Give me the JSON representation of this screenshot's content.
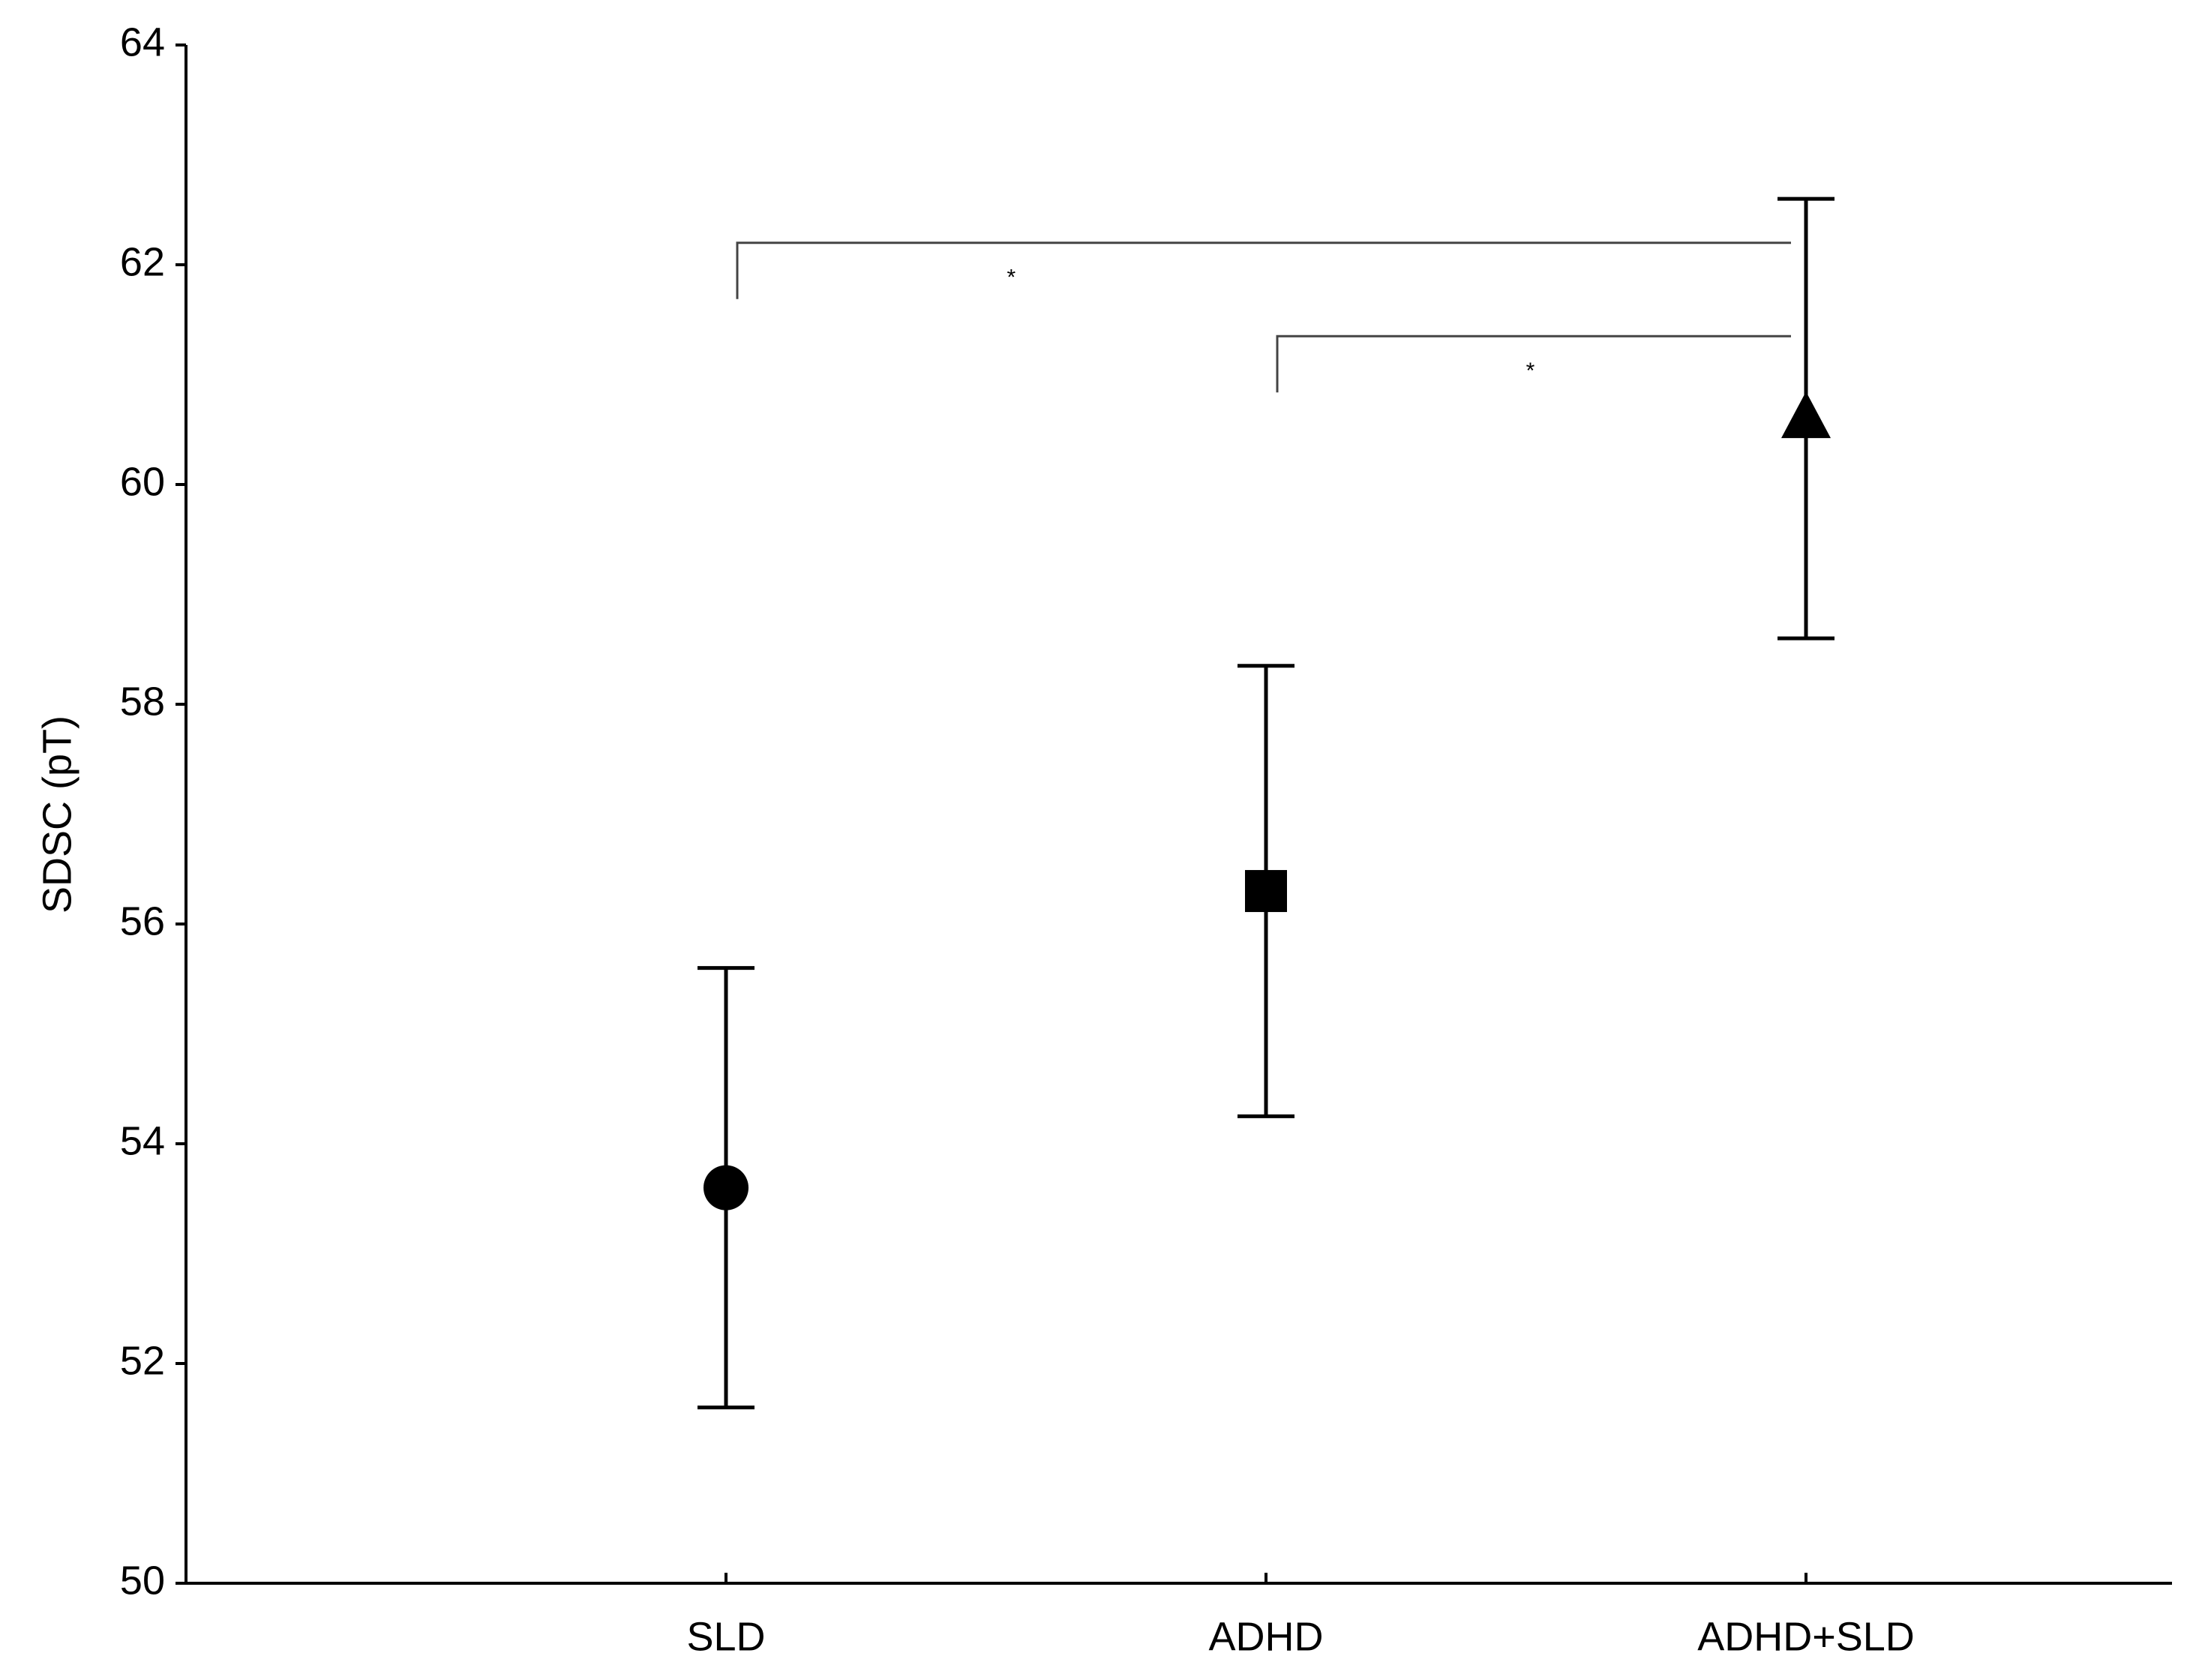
{
  "chart_data": {
    "type": "errorbar",
    "y_label": "SDSC (pT)",
    "categories": [
      "SLD",
      "ADHD",
      "ADHD+SLD"
    ],
    "values": [
      53.6,
      56.3,
      60.6
    ],
    "errors": [
      2.0,
      2.05,
      2.0
    ],
    "markers": [
      "circle",
      "square",
      "triangle"
    ],
    "color": "#000000",
    "ylim": [
      50,
      64
    ],
    "yticks": [
      50,
      52,
      54,
      56,
      58,
      60,
      62,
      64
    ],
    "annotations": [
      {
        "text": "*",
        "from": 0,
        "to": 2,
        "y": 62.2
      },
      {
        "text": "*",
        "from": 1,
        "to": 2,
        "y": 61.35
      }
    ]
  }
}
